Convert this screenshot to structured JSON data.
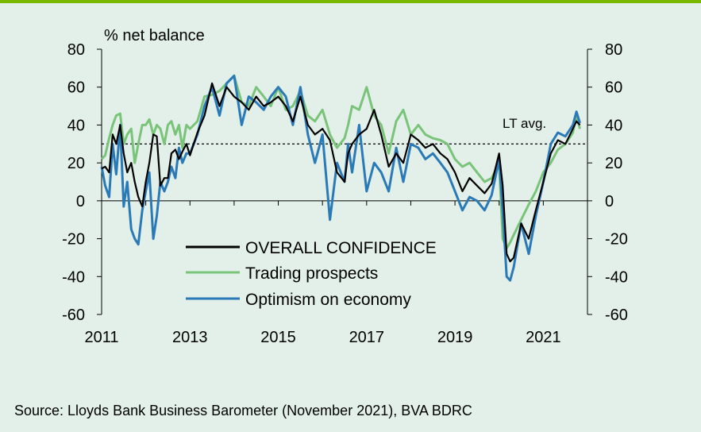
{
  "colors": {
    "background": "#e3efe9",
    "top_bar": "#7ab800",
    "overall": "#000000",
    "trading": "#7ac47a",
    "optimism": "#2a7ab8"
  },
  "source": "Source: Lloyds Bank Business Barometer (November 2021), BVA BDRC",
  "chart_data": {
    "type": "line",
    "ylabel": "% net balance",
    "ylim": [
      -60,
      80
    ],
    "yticks": [
      "80",
      "60",
      "40",
      "20",
      "0",
      "-20",
      "-40",
      "-60"
    ],
    "xlim": [
      2011,
      2022
    ],
    "xticks": [
      "2011",
      "2013",
      "2015",
      "2017",
      "2019",
      "2021"
    ],
    "reference_line": {
      "label": "LT avg.",
      "value": 30,
      "style": "dashed"
    },
    "legend_position": "lower-left",
    "series": [
      {
        "name": "OVERALL CONFIDENCE",
        "color": "#000000",
        "x": [
          2011.0,
          2011.08,
          2011.17,
          2011.25,
          2011.33,
          2011.42,
          2011.5,
          2011.58,
          2011.67,
          2011.75,
          2011.83,
          2011.92,
          2012.0,
          2012.08,
          2012.17,
          2012.25,
          2012.33,
          2012.42,
          2012.5,
          2012.58,
          2012.67,
          2012.75,
          2012.83,
          2012.92,
          2013.0,
          2013.17,
          2013.33,
          2013.5,
          2013.67,
          2013.83,
          2014.0,
          2014.17,
          2014.33,
          2014.5,
          2014.67,
          2014.83,
          2015.0,
          2015.17,
          2015.33,
          2015.5,
          2015.67,
          2015.83,
          2016.0,
          2016.17,
          2016.33,
          2016.5,
          2016.58,
          2016.67,
          2016.83,
          2017.0,
          2017.17,
          2017.33,
          2017.5,
          2017.67,
          2017.83,
          2018.0,
          2018.17,
          2018.33,
          2018.5,
          2018.67,
          2018.83,
          2019.0,
          2019.17,
          2019.33,
          2019.5,
          2019.67,
          2019.83,
          2020.0,
          2020.08,
          2020.17,
          2020.25,
          2020.33,
          2020.5,
          2020.67,
          2020.83,
          2021.0,
          2021.17,
          2021.33,
          2021.5,
          2021.67,
          2021.75,
          2021.83
        ],
        "values": [
          17,
          18,
          15,
          35,
          30,
          40,
          25,
          15,
          20,
          10,
          2,
          -3,
          10,
          20,
          35,
          34,
          8,
          12,
          12,
          25,
          27,
          22,
          26,
          30,
          24,
          36,
          45,
          62,
          50,
          60,
          55,
          52,
          48,
          55,
          50,
          52,
          55,
          50,
          42,
          55,
          40,
          35,
          38,
          32,
          15,
          10,
          25,
          30,
          35,
          38,
          48,
          35,
          18,
          25,
          20,
          35,
          32,
          28,
          30,
          25,
          22,
          15,
          5,
          12,
          8,
          4,
          9,
          25,
          8,
          -28,
          -32,
          -30,
          -12,
          -20,
          -5,
          10,
          25,
          32,
          30,
          38,
          42,
          40
        ]
      },
      {
        "name": "Trading prospects",
        "color": "#7ac47a",
        "x": [
          2011.0,
          2011.08,
          2011.17,
          2011.25,
          2011.33,
          2011.42,
          2011.5,
          2011.58,
          2011.67,
          2011.75,
          2011.83,
          2011.92,
          2012.0,
          2012.08,
          2012.17,
          2012.25,
          2012.33,
          2012.42,
          2012.5,
          2012.58,
          2012.67,
          2012.75,
          2012.83,
          2012.92,
          2013.0,
          2013.17,
          2013.33,
          2013.5,
          2013.67,
          2013.83,
          2014.0,
          2014.17,
          2014.33,
          2014.5,
          2014.67,
          2014.83,
          2015.0,
          2015.17,
          2015.33,
          2015.5,
          2015.67,
          2015.83,
          2016.0,
          2016.17,
          2016.33,
          2016.5,
          2016.58,
          2016.67,
          2016.83,
          2017.0,
          2017.17,
          2017.33,
          2017.5,
          2017.67,
          2017.83,
          2018.0,
          2018.17,
          2018.33,
          2018.5,
          2018.67,
          2018.83,
          2019.0,
          2019.17,
          2019.33,
          2019.5,
          2019.67,
          2019.83,
          2020.0,
          2020.08,
          2020.17,
          2020.25,
          2020.33,
          2020.5,
          2020.67,
          2020.83,
          2021.0,
          2021.17,
          2021.33,
          2021.5,
          2021.67,
          2021.75,
          2021.83
        ],
        "values": [
          22,
          24,
          33,
          40,
          45,
          46,
          30,
          35,
          38,
          20,
          30,
          40,
          40,
          43,
          35,
          40,
          38,
          30,
          40,
          42,
          35,
          40,
          28,
          40,
          38,
          42,
          55,
          56,
          58,
          62,
          66,
          52,
          50,
          60,
          55,
          50,
          60,
          48,
          50,
          58,
          45,
          42,
          48,
          35,
          28,
          33,
          40,
          50,
          48,
          60,
          45,
          40,
          25,
          42,
          48,
          35,
          40,
          35,
          33,
          32,
          30,
          22,
          18,
          20,
          15,
          10,
          12,
          20,
          -20,
          -25,
          -22,
          -18,
          -10,
          -2,
          5,
          15,
          20,
          27,
          30,
          36,
          45,
          38
        ]
      },
      {
        "name": "Optimism on economy",
        "color": "#2a7ab8",
        "x": [
          2011.0,
          2011.08,
          2011.17,
          2011.25,
          2011.33,
          2011.42,
          2011.5,
          2011.58,
          2011.67,
          2011.75,
          2011.83,
          2011.92,
          2012.0,
          2012.08,
          2012.17,
          2012.25,
          2012.33,
          2012.42,
          2012.5,
          2012.58,
          2012.67,
          2012.75,
          2012.83,
          2012.92,
          2013.0,
          2013.17,
          2013.33,
          2013.5,
          2013.67,
          2013.83,
          2014.0,
          2014.17,
          2014.33,
          2014.5,
          2014.67,
          2014.83,
          2015.0,
          2015.17,
          2015.33,
          2015.5,
          2015.67,
          2015.83,
          2016.0,
          2016.17,
          2016.33,
          2016.5,
          2016.58,
          2016.67,
          2016.83,
          2017.0,
          2017.17,
          2017.33,
          2017.5,
          2017.67,
          2017.83,
          2018.0,
          2018.17,
          2018.33,
          2018.5,
          2018.67,
          2018.83,
          2019.0,
          2019.17,
          2019.33,
          2019.5,
          2019.67,
          2019.83,
          2020.0,
          2020.08,
          2020.17,
          2020.25,
          2020.33,
          2020.5,
          2020.67,
          2020.83,
          2021.0,
          2021.17,
          2021.33,
          2021.5,
          2021.67,
          2021.75,
          2021.83
        ],
        "values": [
          18,
          8,
          2,
          30,
          14,
          40,
          -3,
          10,
          -15,
          -20,
          -23,
          -5,
          5,
          15,
          -20,
          -8,
          10,
          5,
          10,
          18,
          12,
          28,
          20,
          25,
          25,
          35,
          50,
          60,
          45,
          62,
          66,
          40,
          55,
          52,
          48,
          55,
          60,
          55,
          40,
          60,
          35,
          20,
          35,
          -10,
          20,
          10,
          30,
          15,
          40,
          5,
          20,
          15,
          5,
          28,
          10,
          30,
          28,
          22,
          25,
          20,
          15,
          5,
          -5,
          2,
          0,
          -5,
          3,
          22,
          -5,
          -40,
          -42,
          -35,
          -12,
          -28,
          -8,
          10,
          30,
          36,
          34,
          40,
          47,
          41
        ]
      }
    ]
  }
}
